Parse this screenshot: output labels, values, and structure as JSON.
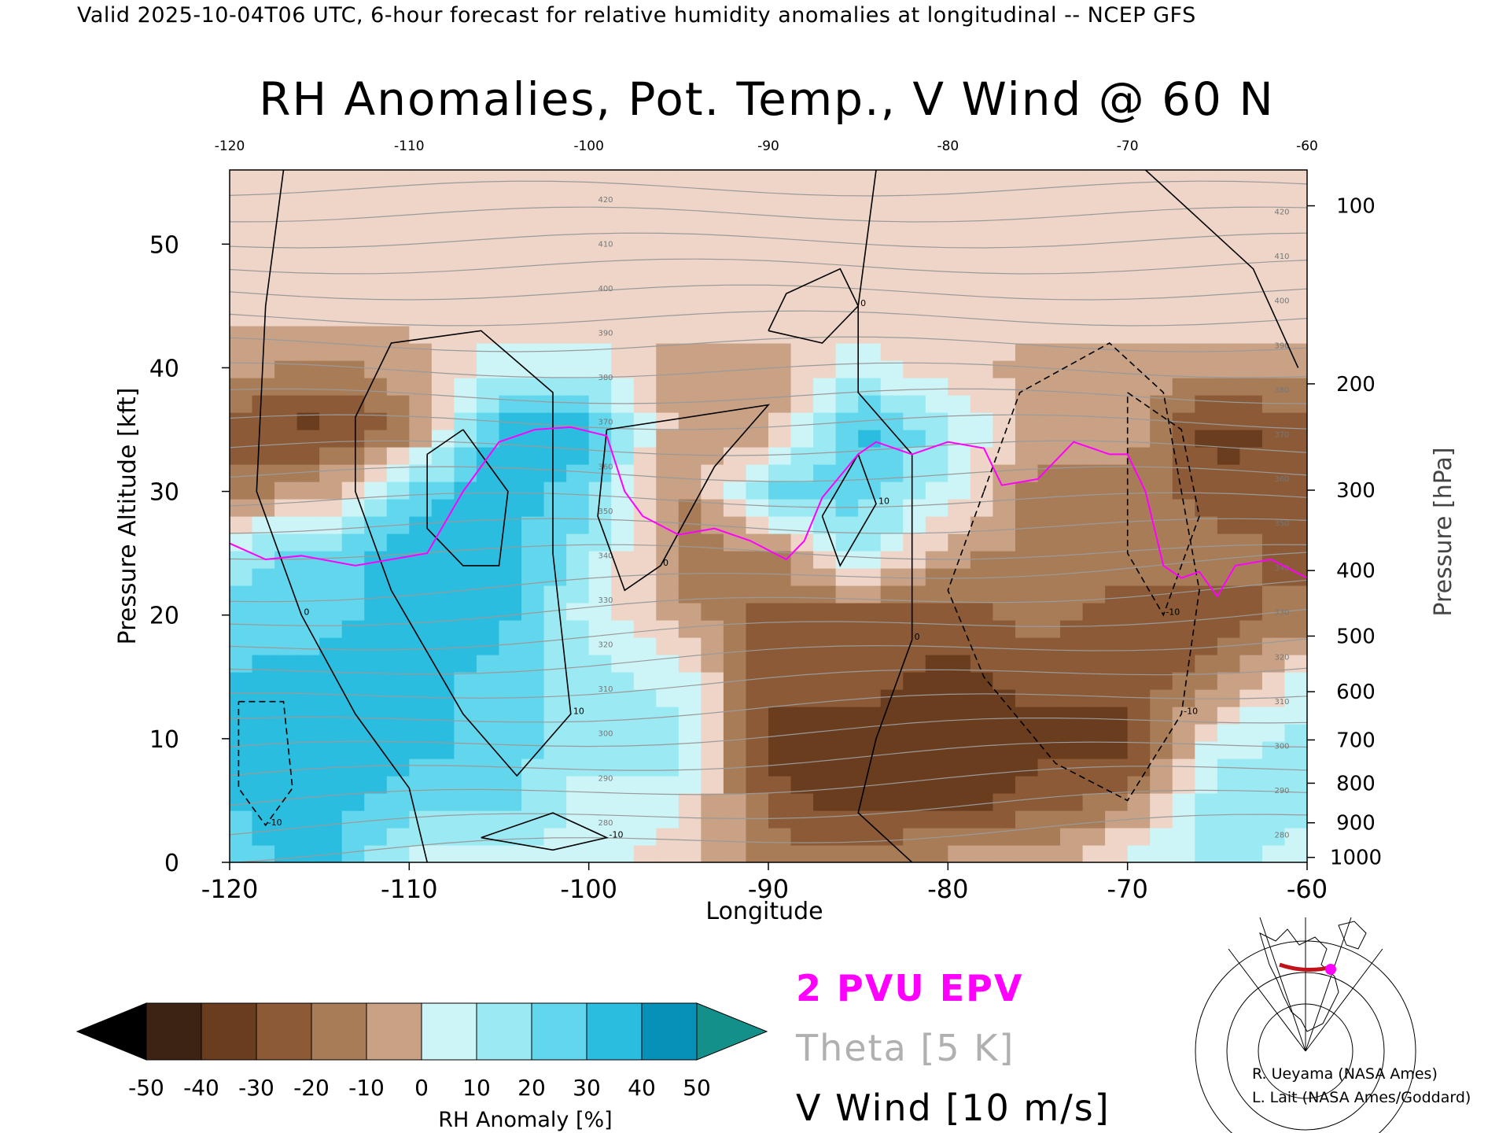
{
  "header": {
    "valid_line": "Valid 2025-10-04T06 UTC, 6-hour forecast for relative humidity anomalies at longitudinal -- NCEP GFS"
  },
  "chart_data": {
    "type": "heatmap",
    "title": "RH Anomalies, Pot. Temp., V Wind @ 60 N",
    "xlabel": "Longitude",
    "ylabel_left": "Pressure Altitude [kft]",
    "ylabel_right": "Pressure [hPa]",
    "xlim": [
      -120,
      -60
    ],
    "ylim": [
      0,
      56
    ],
    "x_ticks": [
      "-120",
      "-110",
      "-100",
      "-90",
      "-80",
      "-70",
      "-60"
    ],
    "x_tick_values": [
      -120,
      -110,
      -100,
      -90,
      -80,
      -70,
      -60
    ],
    "top_ticks": [
      "-120",
      "-110",
      "-100",
      "-90",
      "-80",
      "-70",
      "-60"
    ],
    "y_ticks_left": [
      "0",
      "10",
      "20",
      "30",
      "40",
      "50"
    ],
    "y_tick_values_left": [
      0,
      10,
      20,
      30,
      40,
      50
    ],
    "y_ticks_right": [
      {
        "label": "100",
        "kft": 53.1
      },
      {
        "label": "200",
        "kft": 38.7
      },
      {
        "label": "300",
        "kft": 30.1
      },
      {
        "label": "400",
        "kft": 23.6
      },
      {
        "label": "500",
        "kft": 18.3
      },
      {
        "label": "600",
        "kft": 13.8
      },
      {
        "label": "700",
        "kft": 9.9
      },
      {
        "label": "800",
        "kft": 6.4
      },
      {
        "label": "900",
        "kft": 3.2
      },
      {
        "label": "1000",
        "kft": 0.4
      }
    ],
    "rh_anomaly_grid": {
      "lons": [
        -120,
        -115,
        -110,
        -105,
        -100,
        -95,
        -90,
        -85,
        -80,
        -75,
        -70,
        -65,
        -60
      ],
      "kft": [
        0,
        5,
        10,
        15,
        20,
        25,
        30,
        35,
        40,
        45,
        50,
        55
      ],
      "values": [
        [
          30,
          40,
          10,
          10,
          10,
          0,
          -20,
          -20,
          -10,
          -10,
          10,
          20,
          10
        ],
        [
          35,
          40,
          30,
          30,
          10,
          10,
          -30,
          -40,
          -40,
          -30,
          -20,
          20,
          20
        ],
        [
          40,
          40,
          40,
          30,
          20,
          20,
          -40,
          -40,
          -40,
          -40,
          -40,
          10,
          20
        ],
        [
          35,
          40,
          40,
          30,
          20,
          10,
          -30,
          -30,
          -40,
          -30,
          -30,
          -20,
          10
        ],
        [
          30,
          30,
          40,
          40,
          10,
          -10,
          -30,
          -30,
          -30,
          -20,
          -30,
          -30,
          -20
        ],
        [
          20,
          30,
          40,
          40,
          20,
          -20,
          -20,
          20,
          -10,
          -20,
          -20,
          -20,
          -30
        ],
        [
          -20,
          -10,
          30,
          40,
          30,
          -20,
          30,
          30,
          10,
          -20,
          -20,
          -30,
          -30
        ],
        [
          -30,
          -40,
          -20,
          40,
          40,
          -10,
          -10,
          40,
          20,
          -10,
          -10,
          -40,
          -30
        ],
        [
          -10,
          -20,
          -10,
          10,
          10,
          -10,
          -10,
          10,
          0,
          -10,
          -10,
          -10,
          -10
        ],
        [
          0,
          0,
          0,
          0,
          0,
          0,
          0,
          0,
          0,
          0,
          0,
          0,
          0
        ],
        [
          0,
          0,
          0,
          0,
          0,
          0,
          0,
          0,
          0,
          0,
          0,
          0,
          0
        ],
        [
          0,
          0,
          0,
          0,
          0,
          0,
          0,
          0,
          0,
          0,
          0,
          0,
          0
        ]
      ]
    },
    "epv_2pvu": {
      "lon": [
        -120,
        -118,
        -116,
        -113,
        -111,
        -109,
        -107,
        -105,
        -103,
        -101,
        -99,
        -98,
        -97,
        -95,
        -93,
        -91,
        -89,
        -88,
        -87,
        -85,
        -84,
        -82,
        -80,
        -78,
        -77,
        -75,
        -73,
        -71,
        -70,
        -69,
        -68,
        -67,
        -66,
        -65,
        -64,
        -62,
        -60
      ],
      "kft": [
        25.8,
        24.5,
        24.8,
        24,
        24.5,
        25,
        30,
        34,
        35,
        35.2,
        34.5,
        30,
        28,
        26.5,
        27,
        26,
        24.5,
        26,
        29.5,
        33,
        34,
        33,
        34,
        33.5,
        30.5,
        31,
        34,
        33,
        33,
        30,
        24,
        23,
        23.5,
        21.5,
        24,
        24.5,
        23
      ]
    },
    "theta_contours_K": [
      "280",
      "290",
      "300",
      "310",
      "320",
      "330",
      "340",
      "350",
      "360",
      "370",
      "380",
      "390",
      "400",
      "410",
      "420"
    ],
    "colorbar": {
      "label": "RH Anomaly [%]",
      "ticks": [
        "-50",
        "-40",
        "-30",
        "-20",
        "-10",
        "0",
        "10",
        "20",
        "30",
        "40",
        "50"
      ],
      "colors": [
        "#3c2313",
        "#6a3d1f",
        "#8c5a36",
        "#a97c58",
        "#c9a184",
        "#eed5c8",
        "#cdf5f7",
        "#9ae9f3",
        "#62d6ec",
        "#2bbddf",
        "#0791b8"
      ],
      "low_color": "#000000",
      "high_color": "#14908a"
    },
    "v_wind_contour_labels": [
      "0",
      "10",
      "-10"
    ],
    "legend": [
      {
        "text": "2 PVU EPV",
        "color": "#ff00ff"
      },
      {
        "text": "Theta [5 K]",
        "color": "#b0b0b0"
      },
      {
        "text": "V Wind [10 m/s]",
        "color": "#000000"
      }
    ]
  },
  "credits": {
    "line1": "R. Ueyama (NASA Ames)",
    "line2": "L. Lait (NASA Ames/Goddard)"
  }
}
